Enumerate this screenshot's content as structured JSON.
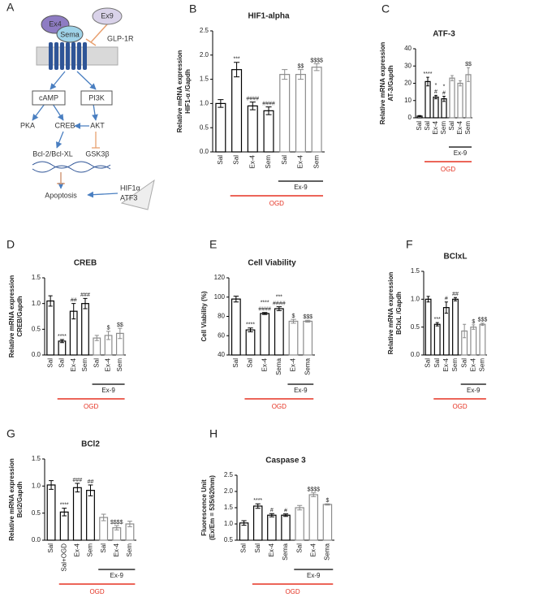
{
  "diagram": {
    "panel": "A",
    "ligand1": "Ex4",
    "ligand2": "Sema",
    "antagonist": "Ex9",
    "receptor": "GLP-1R",
    "node1": "cAMP",
    "node2": "PI3K",
    "node3": "PKA",
    "node4": "CREB",
    "node5": "AKT",
    "node6": "Bcl-2/Bcl-XL",
    "node7": "GSK3β",
    "node8": "Apoptosis",
    "node9": "HIF1α",
    "node10": "ATF3"
  },
  "chart_data": [
    {
      "type": "bar",
      "panel": "B",
      "title": "HIF1-alpha",
      "ylabel": [
        "Relative mRNA expression",
        "HIF1-α /Gapdh"
      ],
      "categories": [
        "Sal",
        "Sal",
        "Ex-4",
        "Sem",
        "Sal",
        "Ex-4",
        "Sem"
      ],
      "values": [
        1.0,
        1.7,
        0.95,
        0.85,
        1.6,
        1.6,
        1.75
      ],
      "errors": [
        0.08,
        0.15,
        0.08,
        0.08,
        0.1,
        0.1,
        0.07
      ],
      "annotations": [
        null,
        "***",
        "####",
        "####",
        null,
        "$$",
        "$$$$"
      ],
      "ogd": [
        false,
        true,
        true,
        true,
        true,
        true,
        true
      ],
      "ex9": [
        false,
        false,
        false,
        false,
        true,
        true,
        true
      ],
      "group_labels": [
        "OGD",
        "Ex-9"
      ],
      "ylim": [
        0,
        2.5
      ],
      "yticks": [
        {
          "value": 0,
          "label": "0.0"
        },
        0.5,
        {
          "value": 1,
          "label": "1.0"
        },
        1.5,
        {
          "value": 2,
          "label": "2.0"
        },
        2.5
      ],
      "bar_color": "#000000",
      "ex9_bar_color": "#8c8c8c",
      "ogd_color": "#e53222"
    },
    {
      "type": "bar",
      "panel": "C",
      "title": "ATF-3",
      "ylabel": [
        "Relative mRNA expression",
        "AT-3/Gapdh"
      ],
      "categories": [
        "Sal",
        "Sal",
        "Ex-4",
        "Sem",
        "Sal",
        "Ex-4",
        "Sem"
      ],
      "values": [
        1,
        21,
        12,
        11,
        23,
        20,
        25
      ],
      "errors": [
        0.3,
        2.5,
        1,
        1.5,
        1.5,
        1.5,
        4
      ],
      "annotations": [
        null,
        "****",
        [
          "*",
          "#"
        ],
        [
          "*",
          "#"
        ],
        null,
        null,
        "$$"
      ],
      "ogd": [
        false,
        true,
        true,
        true,
        true,
        true,
        true
      ],
      "ex9": [
        false,
        false,
        false,
        false,
        true,
        true,
        true
      ],
      "group_labels": [
        "OGD",
        "Ex-9"
      ],
      "ylim": [
        0,
        40
      ],
      "yticks": [
        0,
        10,
        20,
        30,
        40
      ],
      "bar_color": "#000000",
      "ex9_bar_color": "#8c8c8c",
      "ogd_color": "#e53222"
    },
    {
      "type": "bar",
      "panel": "D",
      "title": "CREB",
      "ylabel": [
        "Relative mRNA expression",
        "CREB/Gapdh"
      ],
      "categories": [
        "Sal",
        "Sal",
        "Ex-4",
        "Sem",
        "Sal",
        "Ex-4",
        "Sem"
      ],
      "values": [
        1.05,
        0.27,
        0.85,
        1.0,
        0.33,
        0.38,
        0.42
      ],
      "errors": [
        0.1,
        0.03,
        0.15,
        0.1,
        0.05,
        0.08,
        0.1
      ],
      "annotations": [
        null,
        "****",
        "##",
        "###",
        null,
        "$",
        "$$"
      ],
      "ogd": [
        false,
        true,
        true,
        true,
        true,
        true,
        true
      ],
      "ex9": [
        false,
        false,
        false,
        false,
        true,
        true,
        true
      ],
      "group_labels": [
        "OGD",
        "Ex-9"
      ],
      "ylim": [
        0,
        1.5
      ],
      "yticks": [
        {
          "value": 0,
          "label": "0.0"
        },
        0.5,
        {
          "value": 1,
          "label": "1.0"
        },
        1.5
      ],
      "bar_color": "#000000",
      "ex9_bar_color": "#8c8c8c",
      "ogd_color": "#e53222"
    },
    {
      "type": "bar",
      "panel": "E",
      "title": "Cell Viability",
      "ylabel": [
        "Cell Viability (%)"
      ],
      "categories": [
        "Sal",
        "Sal",
        "Ex-4",
        "Sema",
        "Ex-4",
        "Sema"
      ],
      "values": [
        98,
        66,
        83,
        88,
        75,
        75
      ],
      "errors": [
        3,
        2,
        1,
        2,
        2,
        1
      ],
      "annotations": [
        null,
        "****",
        [
          "****",
          "####"
        ],
        [
          "***",
          "####"
        ],
        "$",
        "$$$"
      ],
      "ogd": [
        false,
        true,
        true,
        true,
        true,
        true
      ],
      "ex9": [
        false,
        false,
        false,
        false,
        true,
        true
      ],
      "group_labels": [
        "OGD",
        "Ex-9"
      ],
      "ylim": [
        40,
        120
      ],
      "yticks": [
        40,
        60,
        80,
        100,
        120
      ],
      "bar_color": "#000000",
      "ex9_bar_color": "#8c8c8c",
      "ogd_color": "#e53222"
    },
    {
      "type": "bar",
      "panel": "F",
      "title": "BClxL",
      "ylabel": [
        "Relative mRNA expression",
        "BClxL /Gapdh"
      ],
      "categories": [
        "Sal",
        "Sal",
        "Ex-4",
        "Sem",
        "Sal",
        "Ex-4",
        "Sem"
      ],
      "values": [
        1.0,
        0.55,
        0.85,
        1.0,
        0.43,
        0.5,
        0.55
      ],
      "errors": [
        0.05,
        0.03,
        0.1,
        0.03,
        0.12,
        0.04,
        0.02
      ],
      "annotations": [
        null,
        "***",
        "#",
        "##",
        null,
        "$",
        "$$$"
      ],
      "ogd": [
        false,
        true,
        true,
        true,
        true,
        true,
        true
      ],
      "ex9": [
        false,
        false,
        false,
        false,
        true,
        true,
        true
      ],
      "group_labels": [
        "OGD",
        "Ex-9"
      ],
      "ylim": [
        0,
        1.5
      ],
      "yticks": [
        {
          "value": 0,
          "label": "0.0"
        },
        0.5,
        {
          "value": 1,
          "label": "1.0"
        },
        1.5
      ],
      "bar_color": "#000000",
      "ex9_bar_color": "#8c8c8c",
      "ogd_color": "#e53222"
    },
    {
      "type": "bar",
      "panel": "G",
      "title": "BCl2",
      "ylabel": [
        "Relative mRNA expression",
        "Bcl2/Gapdh"
      ],
      "categories": [
        "Sal",
        "Sal+OGD",
        "Ex-4",
        "Sem",
        "Sal",
        "Ex-4",
        "Sem"
      ],
      "values": [
        1.02,
        0.52,
        0.97,
        0.92,
        0.42,
        0.23,
        0.3
      ],
      "errors": [
        0.08,
        0.07,
        0.08,
        0.1,
        0.06,
        0.04,
        0.05
      ],
      "annotations": [
        null,
        "****",
        "###",
        "##",
        null,
        "$$$$",
        null
      ],
      "ogd": [
        false,
        true,
        true,
        true,
        true,
        true,
        true
      ],
      "ex9": [
        false,
        false,
        false,
        false,
        true,
        true,
        true
      ],
      "group_labels": [
        "OGD",
        "Ex-9"
      ],
      "ylim": [
        0,
        1.5
      ],
      "yticks": [
        {
          "value": 0,
          "label": "0.0"
        },
        0.5,
        {
          "value": 1,
          "label": "1.0"
        },
        1.5
      ],
      "bar_color": "#000000",
      "ex9_bar_color": "#8c8c8c",
      "ogd_color": "#e53222"
    },
    {
      "type": "bar",
      "panel": "H",
      "title": "Caspase 3",
      "ylabel": [
        "Fluorescence Unit",
        "(Ex/Em = 535/620nm)"
      ],
      "categories": [
        "Sal",
        "Sal",
        "Ex-4",
        "Sema",
        "Sal",
        "Ex-4",
        "Sema"
      ],
      "values": [
        1.03,
        1.55,
        1.27,
        1.27,
        1.5,
        1.9,
        1.6
      ],
      "errors": [
        0.07,
        0.07,
        0.05,
        0.04,
        0.07,
        0.06,
        0.02
      ],
      "annotations": [
        null,
        "****",
        "#",
        "#",
        null,
        "$$$$",
        "$"
      ],
      "ogd": [
        false,
        true,
        true,
        true,
        true,
        true,
        true
      ],
      "ex9": [
        false,
        false,
        false,
        false,
        true,
        true,
        true
      ],
      "group_labels": [
        "OGD",
        "Ex-9"
      ],
      "ylim": [
        0.5,
        2.5
      ],
      "yticks": [
        0.5,
        {
          "value": 1,
          "label": "1.0"
        },
        1.5,
        {
          "value": 2,
          "label": "2.0"
        },
        2.5
      ],
      "bar_color": "#000000",
      "ex9_bar_color": "#8c8c8c",
      "ogd_color": "#e53222"
    }
  ]
}
